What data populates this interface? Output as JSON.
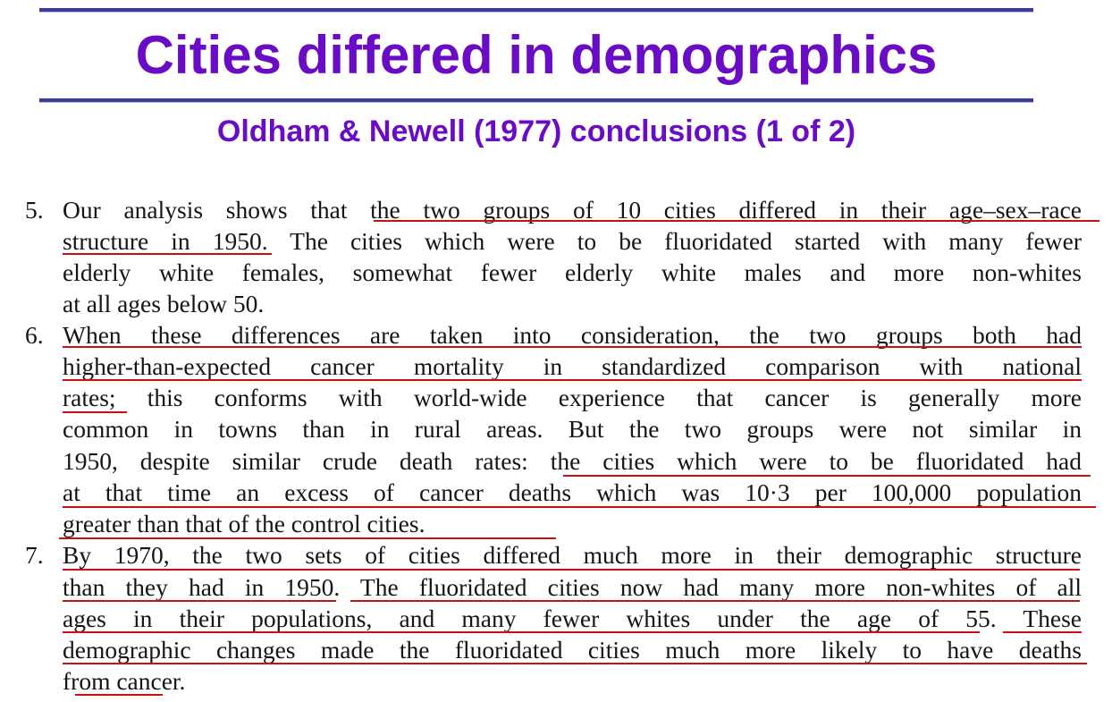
{
  "slide": {
    "title": "Cities differed in demographics",
    "subtitle": "Oldham & Newell (1977) conclusions (1 of 2)"
  },
  "excerpt": {
    "items": [
      {
        "number": "5.",
        "lines": [
          "Our analysis shows that the two groups of 10 cities differed in their age–sex–race",
          "structure in 1950.  The cities which were to be fluoridated started with many fewer",
          "elderly white females, somewhat fewer elderly white males and more non-whites",
          "at all ages below 50."
        ]
      },
      {
        "number": "6.",
        "lines": [
          "When these differences are taken into consideration, the two groups both had",
          "higher-than-expected cancer mortality in standardized comparison with national",
          "rates; this conforms with world-wide experience that cancer is generally more",
          "common in towns than in rural areas.  But the two groups were not similar in",
          "1950, despite similar crude death rates: the cities which were to be fluoridated had",
          "at that time an excess of cancer deaths which was 10·3 per 100,000 population",
          "greater than that of the control cities."
        ]
      },
      {
        "number": "7.",
        "lines": [
          "By 1970, the two sets of cities differed much more in their demographic structure",
          "than they had in 1950.  The fluoridated cities now had many more non-whites of all",
          "ages in their populations, and many fewer whites under the age of 55.  These",
          "demographic changes made the fluoridated cities much more likely to have deaths",
          "from cancer."
        ]
      }
    ]
  },
  "colors": {
    "title": "#6a0bc6",
    "rule": "#3c3c9a",
    "underline": "#cc1010",
    "text": "#151515"
  }
}
